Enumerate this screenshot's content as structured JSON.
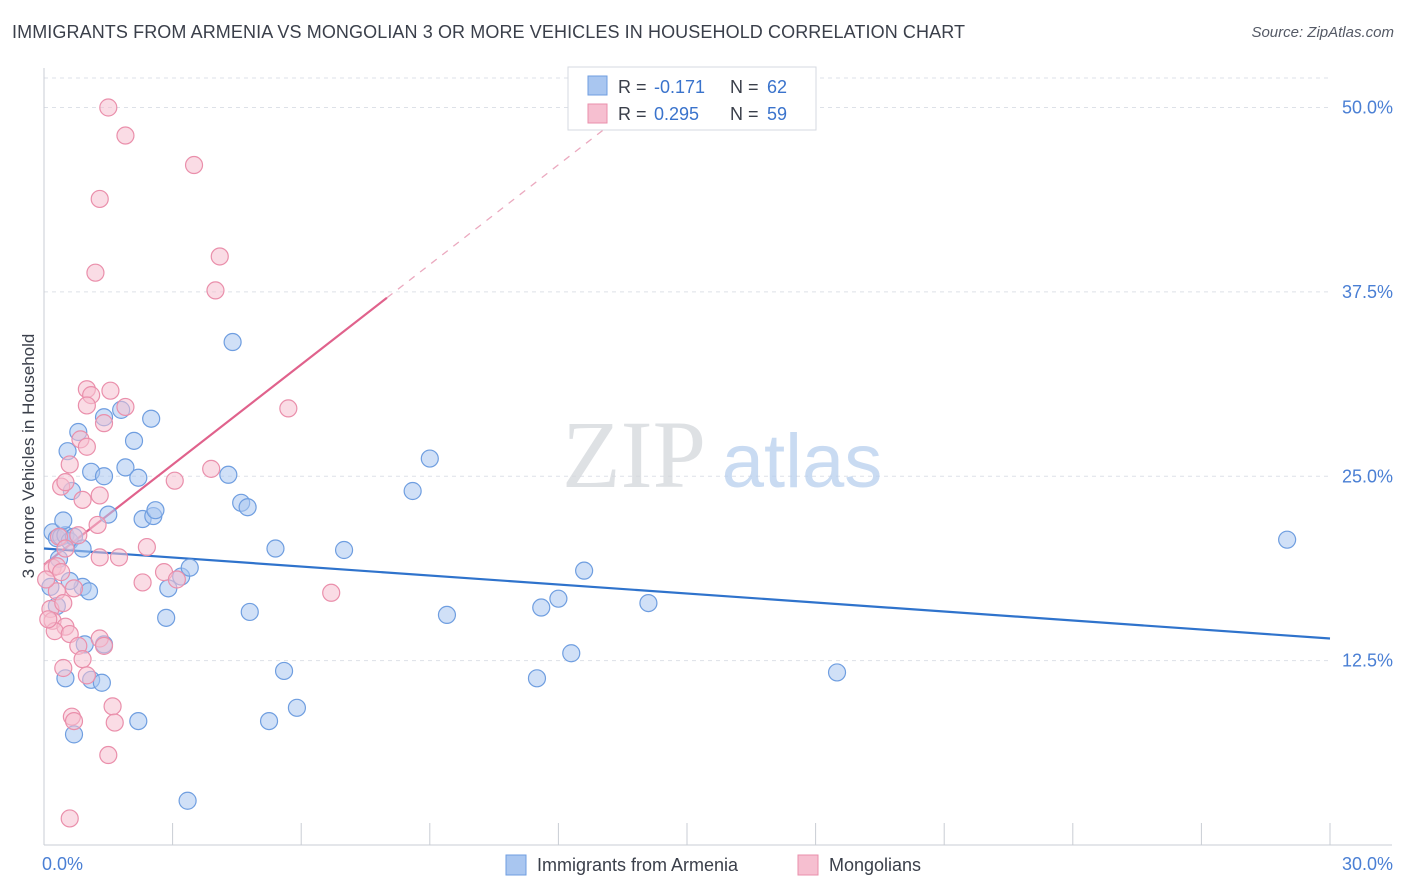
{
  "title": "IMMIGRANTS FROM ARMENIA VS MONGOLIAN 3 OR MORE VEHICLES IN HOUSEHOLD CORRELATION CHART",
  "source": "Source: ZipAtlas.com",
  "watermark": {
    "zip": "ZIP",
    "atlas": "atlas"
  },
  "colors": {
    "blue_fill": "#a9c6f0",
    "blue_stroke": "#6f9ee0",
    "blue_line": "#2f73cc",
    "pink_fill": "#f6bfd0",
    "pink_stroke": "#ea8fab",
    "pink_line": "#e0628c",
    "tick_text": "#4a7fd4",
    "grid": "#dde1e8"
  },
  "legend": {
    "rows": [
      {
        "r_label": "R =",
        "r_value": "-0.171",
        "n_label": "N =",
        "n_value": "62"
      },
      {
        "r_label": "R =",
        "r_value": "0.295",
        "n_label": "N =",
        "n_value": "59"
      }
    ]
  },
  "chart_data": {
    "type": "scatter",
    "title": "IMMIGRANTS FROM ARMENIA VS MONGOLIAN 3 OR MORE VEHICLES IN HOUSEHOLD CORRELATION CHART",
    "xlabel": "",
    "ylabel": "3 or more Vehicles in Household",
    "xlim": [
      0,
      30
    ],
    "ylim": [
      0,
      52
    ],
    "x_tick_labels": [
      {
        "value": 0,
        "label": "0.0%"
      },
      {
        "value": 30,
        "label": "30.0%"
      }
    ],
    "y_ticks": [
      {
        "value": 12.5,
        "label": "12.5%"
      },
      {
        "value": 25,
        "label": "25.0%"
      },
      {
        "value": 37.5,
        "label": "37.5%"
      },
      {
        "value": 50,
        "label": "50.0%"
      }
    ],
    "grid": true,
    "legend_position": "top-center",
    "series": [
      {
        "name": "Immigrants from Armenia",
        "r": -0.171,
        "n": 62,
        "trend": {
          "x": [
            0,
            30
          ],
          "y": [
            20.1,
            14.0
          ],
          "dashed_from": null
        },
        "points": [
          [
            0.2,
            21.2
          ],
          [
            0.3,
            20.8
          ],
          [
            0.4,
            20.9
          ],
          [
            0.5,
            21.0
          ],
          [
            0.6,
            20.6
          ],
          [
            0.35,
            19.4
          ],
          [
            0.7,
            20.9
          ],
          [
            0.9,
            20.1
          ],
          [
            0.55,
            26.7
          ],
          [
            0.8,
            28.0
          ],
          [
            0.65,
            24.0
          ],
          [
            1.1,
            25.3
          ],
          [
            1.4,
            25.0
          ],
          [
            1.4,
            29.0
          ],
          [
            1.8,
            29.5
          ],
          [
            1.9,
            25.6
          ],
          [
            2.1,
            27.4
          ],
          [
            2.5,
            28.9
          ],
          [
            2.2,
            24.9
          ],
          [
            2.3,
            22.1
          ],
          [
            2.55,
            22.3
          ],
          [
            2.6,
            22.7
          ],
          [
            3.2,
            18.2
          ],
          [
            3.4,
            18.8
          ],
          [
            4.4,
            34.1
          ],
          [
            4.3,
            25.1
          ],
          [
            4.6,
            23.2
          ],
          [
            4.75,
            22.9
          ],
          [
            4.8,
            15.8
          ],
          [
            5.4,
            20.1
          ],
          [
            5.6,
            11.8
          ],
          [
            5.9,
            9.3
          ],
          [
            5.25,
            8.4
          ],
          [
            7.0,
            20.0
          ],
          [
            8.6,
            24.0
          ],
          [
            9.0,
            26.2
          ],
          [
            9.4,
            15.6
          ],
          [
            11.6,
            16.1
          ],
          [
            12.0,
            16.7
          ],
          [
            12.3,
            13.0
          ],
          [
            12.6,
            18.6
          ],
          [
            14.1,
            16.4
          ],
          [
            11.5,
            11.3
          ],
          [
            18.5,
            11.7
          ],
          [
            29.0,
            20.7
          ],
          [
            0.5,
            11.3
          ],
          [
            0.7,
            7.5
          ],
          [
            1.1,
            11.2
          ],
          [
            1.35,
            11.0
          ],
          [
            1.4,
            13.6
          ],
          [
            0.95,
            13.6
          ],
          [
            2.2,
            8.4
          ],
          [
            3.35,
            3.0
          ],
          [
            2.85,
            15.4
          ],
          [
            2.9,
            17.4
          ],
          [
            0.9,
            17.5
          ],
          [
            1.05,
            17.2
          ],
          [
            0.6,
            17.9
          ],
          [
            0.3,
            16.2
          ],
          [
            0.15,
            17.5
          ],
          [
            0.45,
            22.0
          ],
          [
            1.5,
            22.4
          ]
        ]
      },
      {
        "name": "Mongolians",
        "r": 0.295,
        "n": 59,
        "trend": {
          "x": [
            0,
            8.0
          ],
          "y": [
            19.0,
            37.1
          ],
          "dashed_to": [
            13.5,
            49.5
          ]
        },
        "points": [
          [
            1.5,
            50.0
          ],
          [
            1.9,
            48.1
          ],
          [
            3.5,
            46.1
          ],
          [
            1.3,
            43.8
          ],
          [
            1.2,
            38.8
          ],
          [
            4.1,
            39.9
          ],
          [
            4.0,
            37.6
          ],
          [
            1.0,
            30.9
          ],
          [
            1.55,
            30.8
          ],
          [
            1.1,
            30.5
          ],
          [
            1.0,
            29.8
          ],
          [
            1.9,
            29.7
          ],
          [
            5.7,
            29.6
          ],
          [
            1.4,
            28.6
          ],
          [
            0.85,
            27.5
          ],
          [
            1.0,
            27.0
          ],
          [
            0.6,
            25.8
          ],
          [
            3.05,
            24.7
          ],
          [
            3.9,
            25.5
          ],
          [
            0.4,
            24.3
          ],
          [
            0.5,
            24.6
          ],
          [
            0.9,
            23.4
          ],
          [
            1.3,
            23.7
          ],
          [
            1.25,
            21.7
          ],
          [
            0.8,
            21.0
          ],
          [
            0.35,
            20.9
          ],
          [
            0.5,
            20.1
          ],
          [
            1.3,
            19.5
          ],
          [
            1.75,
            19.5
          ],
          [
            2.4,
            20.2
          ],
          [
            0.2,
            18.8
          ],
          [
            0.3,
            18.9
          ],
          [
            0.4,
            18.5
          ],
          [
            0.3,
            17.2
          ],
          [
            0.7,
            17.4
          ],
          [
            2.3,
            17.8
          ],
          [
            2.8,
            18.5
          ],
          [
            3.1,
            18.0
          ],
          [
            6.7,
            17.1
          ],
          [
            0.15,
            16.0
          ],
          [
            0.45,
            16.4
          ],
          [
            0.2,
            15.2
          ],
          [
            0.5,
            14.8
          ],
          [
            0.25,
            14.5
          ],
          [
            0.6,
            14.3
          ],
          [
            1.3,
            14.0
          ],
          [
            0.8,
            13.5
          ],
          [
            0.9,
            12.6
          ],
          [
            0.45,
            12.0
          ],
          [
            1.0,
            11.5
          ],
          [
            1.6,
            9.4
          ],
          [
            0.65,
            8.7
          ],
          [
            0.7,
            8.4
          ],
          [
            1.65,
            8.3
          ],
          [
            1.5,
            6.1
          ],
          [
            0.6,
            1.8
          ],
          [
            0.05,
            18.0
          ],
          [
            0.1,
            15.3
          ],
          [
            1.4,
            13.5
          ]
        ]
      }
    ]
  }
}
